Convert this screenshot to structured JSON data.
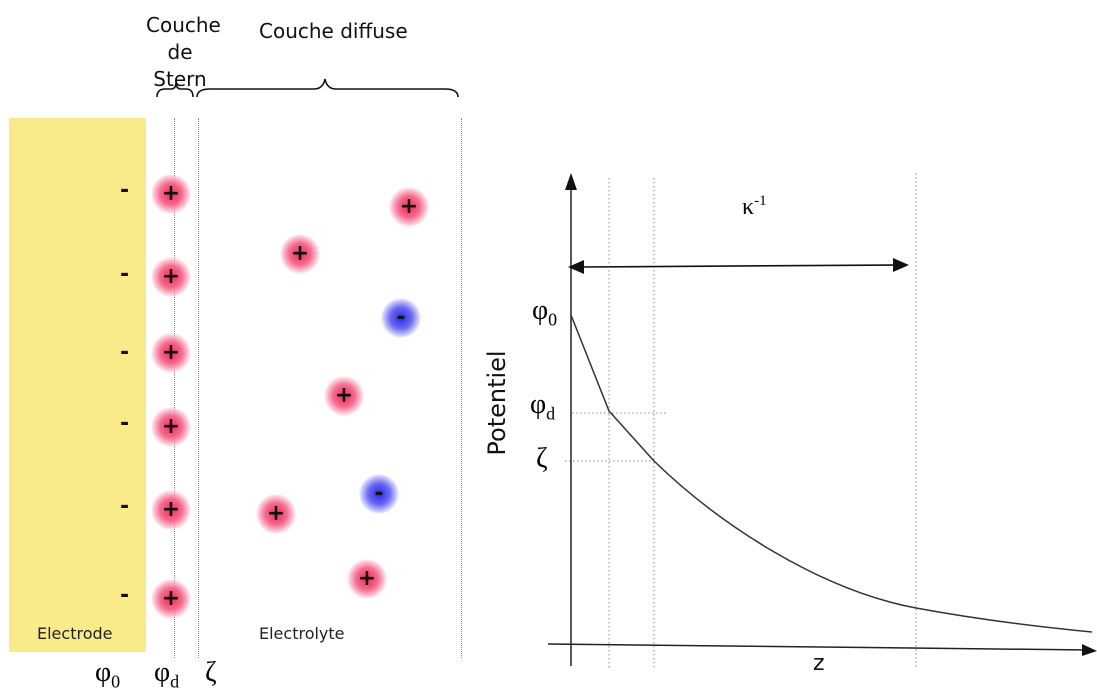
{
  "left_panel": {
    "stern_label": [
      "Couche",
      "de Stern"
    ],
    "diffuse_label": "Couche diffuse",
    "electrode_label": "Electrode",
    "electrolyte_label": "Electrolyte",
    "electrode_charges": [
      "-",
      "-",
      "-",
      "-",
      "-",
      "-"
    ],
    "stern_ions": [
      "+",
      "+",
      "+",
      "+",
      "+",
      "+"
    ],
    "diffuse_ions": [
      "+",
      "+",
      "-",
      "+",
      "-",
      "+",
      "+"
    ],
    "bottom_labels": {
      "phi0": "φ",
      "phi0_sub": "0",
      "phid": "φ",
      "phid_sub": "d",
      "zeta": "ζ"
    }
  },
  "right_panel": {
    "kappa": "κ",
    "kappa_sup": "-1",
    "y_axis_label": "Potentiel",
    "x_axis_label": "z",
    "phi0": "φ",
    "phi0_sub": "0",
    "phid": "φ",
    "phid_sub": "d",
    "zeta": "ζ"
  },
  "colors": {
    "electrode": "#f9eb8a",
    "positive_ion": "#f02a5c",
    "negative_ion": "#2a2ae6"
  }
}
